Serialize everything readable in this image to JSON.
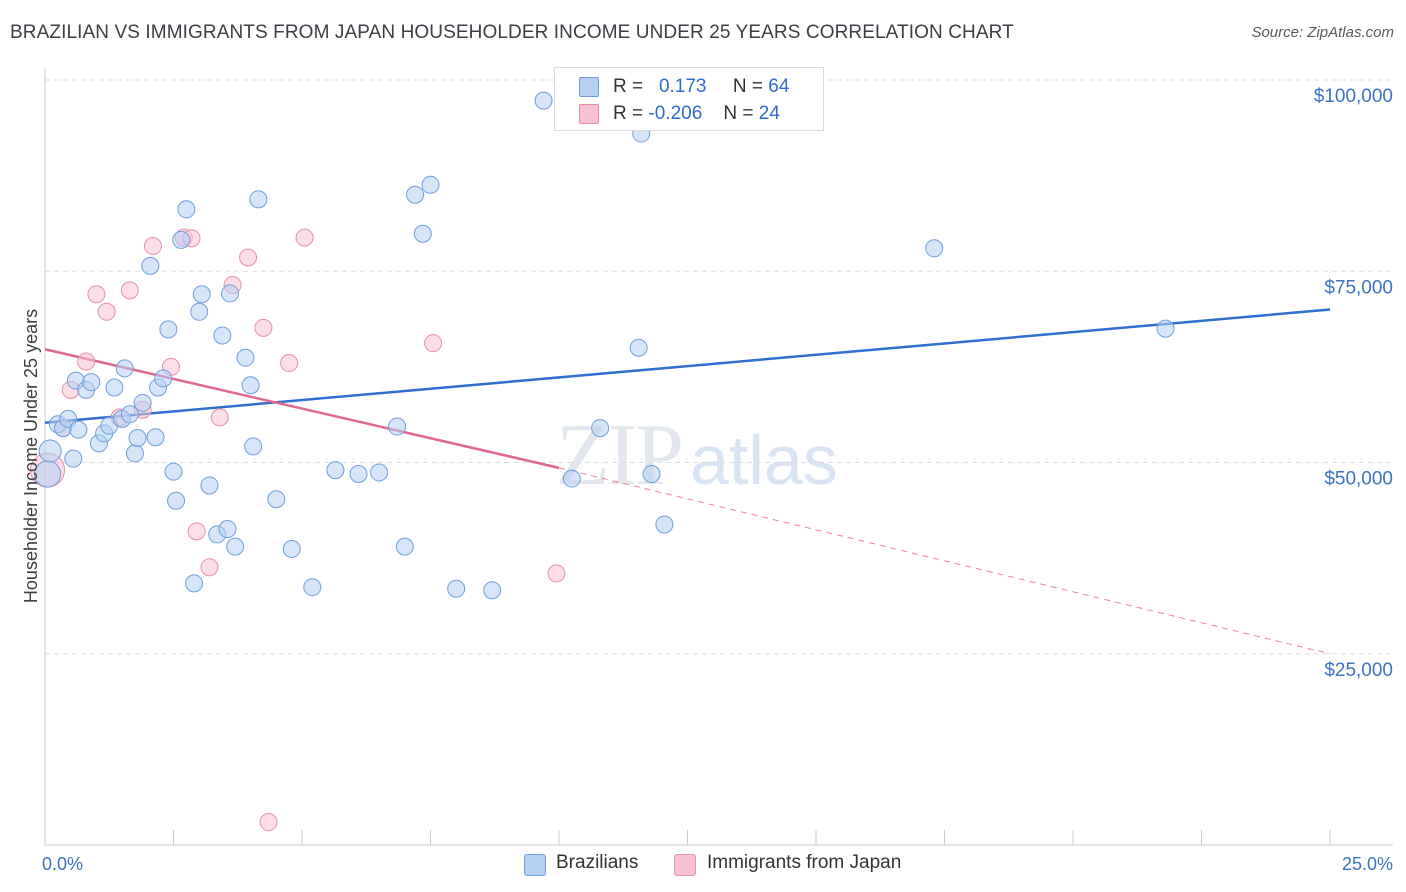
{
  "header": {
    "title": "BRAZILIAN VS IMMIGRANTS FROM JAPAN HOUSEHOLDER INCOME UNDER 25 YEARS CORRELATION CHART",
    "source": "Source: ZipAtlas.com"
  },
  "legend": {
    "rows": [
      {
        "r_label": "R =",
        "r_value": "0.173",
        "n_label": "N =",
        "n_value": "64",
        "color": "#b5cff2"
      },
      {
        "r_label": "R =",
        "r_value": "-0.206",
        "n_label": "N =",
        "n_value": "24",
        "color": "#f7c3d2"
      }
    ]
  },
  "bottom_legend": {
    "items": [
      {
        "label": "Brazilians",
        "color": "#b5cff2"
      },
      {
        "label": "Immigrants from Japan",
        "color": "#f7c3d2"
      }
    ]
  },
  "watermark": {
    "zip": "ZIP",
    "atlas": "atlas"
  },
  "colors": {
    "blue_fill": "#b5cff2",
    "blue_stroke": "#6f9fdc",
    "blue_line": "#2e6fcf",
    "pink_fill": "#f7c3d2",
    "pink_stroke": "#ea8fab",
    "pink_line": "#e0668f",
    "tick_text": "#3b73c4",
    "grid": "#d9dde3"
  },
  "chart_data": {
    "type": "scatter",
    "title": "BRAZILIAN VS IMMIGRANTS FROM JAPAN HOUSEHOLDER INCOME UNDER 25 YEARS CORRELATION CHART",
    "xlabel": "",
    "ylabel": "Householder Income Under 25 years",
    "xlim": [
      0,
      25
    ],
    "ylim": [
      0,
      105000
    ],
    "x_tick_labels": [
      "0.0%",
      "25.0%"
    ],
    "y_ticks": [
      25000,
      50000,
      75000,
      100000
    ],
    "y_tick_labels": [
      "$25,000",
      "$50,000",
      "$75,000",
      "$100,000"
    ],
    "grid": true,
    "series": [
      {
        "name": "Brazilians",
        "color": "#b5cff2",
        "trend": {
          "x": [
            0,
            25
          ],
          "y": [
            55200,
            70000
          ]
        },
        "points": [
          [
            0.05,
            48500
          ],
          [
            0.1,
            51500
          ],
          [
            0.25,
            55000
          ],
          [
            0.35,
            54500
          ],
          [
            0.45,
            55700
          ],
          [
            0.55,
            50500
          ],
          [
            0.65,
            54300
          ],
          [
            0.6,
            60700
          ],
          [
            0.8,
            59500
          ],
          [
            0.9,
            60500
          ],
          [
            1.05,
            52500
          ],
          [
            1.15,
            53800
          ],
          [
            1.25,
            54800
          ],
          [
            1.35,
            59800
          ],
          [
            1.5,
            55700
          ],
          [
            1.55,
            62300
          ],
          [
            1.65,
            56300
          ],
          [
            1.75,
            51200
          ],
          [
            1.8,
            53200
          ],
          [
            1.9,
            57800
          ],
          [
            2.05,
            75700
          ],
          [
            2.15,
            53300
          ],
          [
            2.2,
            59800
          ],
          [
            2.3,
            61000
          ],
          [
            2.4,
            67400
          ],
          [
            2.5,
            48800
          ],
          [
            2.55,
            45000
          ],
          [
            2.65,
            79100
          ],
          [
            2.75,
            83100
          ],
          [
            2.9,
            34200
          ],
          [
            3.0,
            69700
          ],
          [
            3.05,
            72000
          ],
          [
            3.2,
            47000
          ],
          [
            3.35,
            40600
          ],
          [
            3.45,
            66600
          ],
          [
            3.55,
            41300
          ],
          [
            3.6,
            72100
          ],
          [
            3.7,
            39000
          ],
          [
            3.9,
            63700
          ],
          [
            4.0,
            60100
          ],
          [
            4.05,
            52100
          ],
          [
            4.15,
            84400
          ],
          [
            4.5,
            45200
          ],
          [
            4.8,
            38700
          ],
          [
            5.2,
            33700
          ],
          [
            5.65,
            49000
          ],
          [
            6.1,
            48500
          ],
          [
            6.5,
            48700
          ],
          [
            6.85,
            54700
          ],
          [
            7.0,
            39000
          ],
          [
            7.2,
            85000
          ],
          [
            7.35,
            79900
          ],
          [
            7.5,
            86300
          ],
          [
            8.0,
            33500
          ],
          [
            8.7,
            33300
          ],
          [
            9.7,
            97300
          ],
          [
            10.25,
            47900
          ],
          [
            10.8,
            54500
          ],
          [
            11.6,
            93000
          ],
          [
            11.55,
            65000
          ],
          [
            11.8,
            48500
          ],
          [
            12.05,
            41900
          ],
          [
            17.3,
            78000
          ],
          [
            21.8,
            67500
          ]
        ]
      },
      {
        "name": "Immigrants from Japan",
        "color": "#f7c3d2",
        "trend": {
          "x": [
            0,
            10
          ],
          "y": [
            64800,
            49300
          ]
        },
        "trend_dashed": {
          "x": [
            10,
            25
          ],
          "y": [
            49300,
            25000
          ]
        },
        "points": [
          [
            0.05,
            49000
          ],
          [
            0.35,
            54500
          ],
          [
            0.5,
            59500
          ],
          [
            0.8,
            63200
          ],
          [
            1.0,
            72000
          ],
          [
            1.2,
            69700
          ],
          [
            1.45,
            55900
          ],
          [
            1.65,
            72500
          ],
          [
            1.9,
            56900
          ],
          [
            2.1,
            78300
          ],
          [
            2.45,
            62500
          ],
          [
            2.7,
            79400
          ],
          [
            2.85,
            79300
          ],
          [
            2.95,
            41000
          ],
          [
            3.2,
            36300
          ],
          [
            3.4,
            55900
          ],
          [
            3.65,
            73200
          ],
          [
            3.95,
            76800
          ],
          [
            4.25,
            67600
          ],
          [
            4.35,
            3000
          ],
          [
            4.75,
            63000
          ],
          [
            5.05,
            79400
          ],
          [
            7.55,
            65600
          ],
          [
            9.95,
            35500
          ]
        ]
      }
    ]
  }
}
